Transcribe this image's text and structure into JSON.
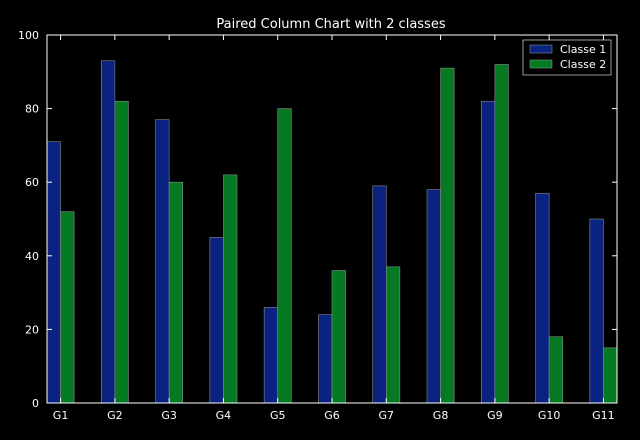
{
  "chart_data": {
    "type": "bar",
    "title": "Paired Column Chart with 2 classes",
    "xlabel": "",
    "ylabel": "",
    "ylim": [
      0,
      100
    ],
    "yticks": [
      0,
      20,
      40,
      60,
      80,
      100
    ],
    "grid": false,
    "legend_position": "top-right",
    "categories": [
      "G1",
      "G2",
      "G3",
      "G4",
      "G5",
      "G6",
      "G7",
      "G8",
      "G9",
      "G10",
      "G11"
    ],
    "series": [
      {
        "name": "Classe 1",
        "color": "#0a2280",
        "values": [
          71,
          93,
          77,
          45,
          26,
          24,
          59,
          58,
          82,
          57,
          50
        ]
      },
      {
        "name": "Classe 2",
        "color": "#067a23",
        "values": [
          52,
          82,
          60,
          62,
          80,
          36,
          37,
          91,
          92,
          18,
          15
        ]
      }
    ]
  }
}
